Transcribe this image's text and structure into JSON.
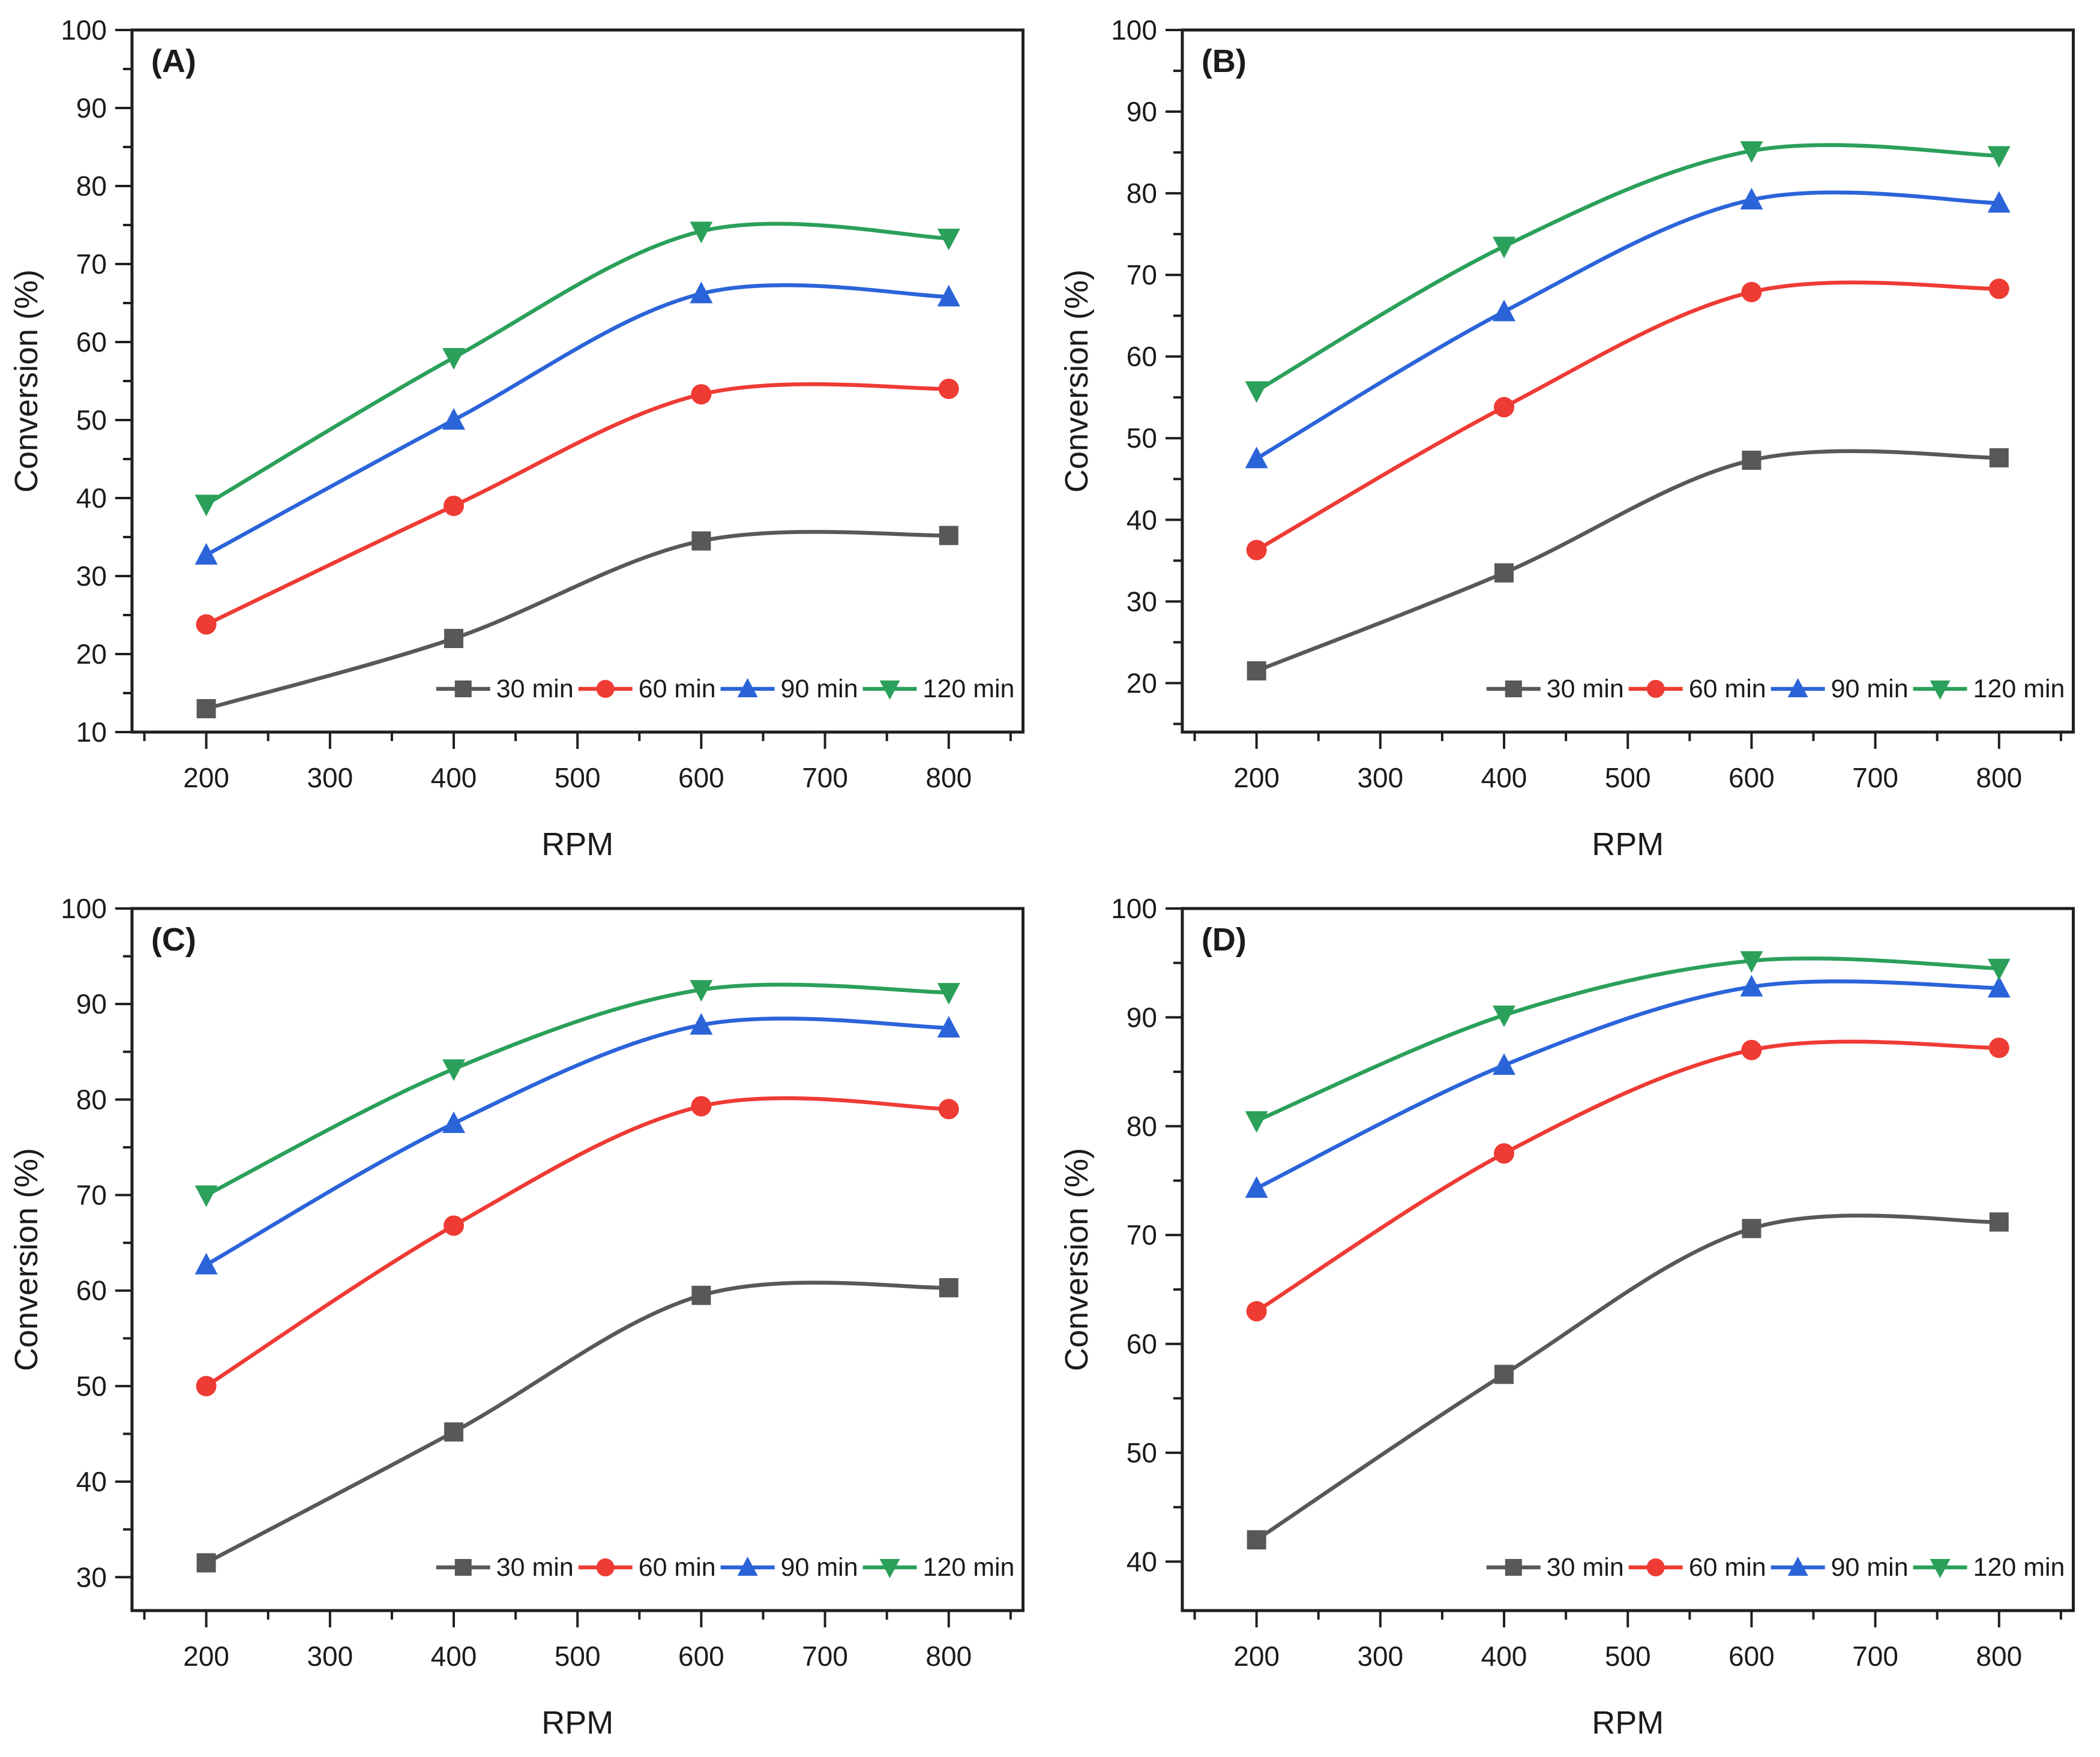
{
  "figure": {
    "background": "#ffffff",
    "axis_color": "#1f1f1f",
    "text_color": "#1b1b1b"
  },
  "legend": {
    "entries": [
      "30 min",
      "60 min",
      "90 min",
      "120 min"
    ],
    "position": "inside-bottom-right"
  },
  "chart_data": [
    {
      "panel_label": "(A)",
      "type": "line",
      "xlabel": "RPM",
      "ylabel": "Conversion (%)",
      "x": [
        200,
        400,
        600,
        800
      ],
      "xlim": [
        140,
        860
      ],
      "xticks": [
        200,
        300,
        400,
        500,
        600,
        700,
        800
      ],
      "x_minor_step": 50,
      "ylim": [
        10,
        100
      ],
      "yticks": [
        10,
        20,
        30,
        40,
        50,
        60,
        70,
        80,
        90,
        100
      ],
      "y_minor_step": 5,
      "grid": false,
      "legend_position": "inside-bottom-right",
      "series": [
        {
          "name": "30 min",
          "marker": "square",
          "color": "#58585A",
          "values": [
            13.0,
            22.0,
            34.5,
            35.2
          ]
        },
        {
          "name": "60 min",
          "marker": "circle",
          "color": "#EE3B34",
          "values": [
            23.8,
            39.0,
            53.3,
            54.0
          ]
        },
        {
          "name": "90 min",
          "marker": "triangle-up",
          "color": "#2B64D9",
          "values": [
            32.7,
            50.0,
            66.2,
            65.8
          ]
        },
        {
          "name": "120 min",
          "marker": "triangle-down",
          "color": "#2BA05A",
          "values": [
            39.2,
            58.0,
            74.2,
            73.3
          ]
        }
      ]
    },
    {
      "panel_label": "(B)",
      "type": "line",
      "xlabel": "RPM",
      "ylabel": "Conversion (%)",
      "x": [
        200,
        400,
        600,
        800
      ],
      "xlim": [
        140,
        860
      ],
      "xticks": [
        200,
        300,
        400,
        500,
        600,
        700,
        800
      ],
      "x_minor_step": 50,
      "ylim": [
        14,
        100
      ],
      "yticks": [
        20,
        30,
        40,
        50,
        60,
        70,
        80,
        90,
        100
      ],
      "y_minor_step": 5,
      "grid": false,
      "legend_position": "inside-bottom-right",
      "series": [
        {
          "name": "30 min",
          "marker": "square",
          "color": "#58585A",
          "values": [
            21.5,
            33.5,
            47.3,
            47.6
          ]
        },
        {
          "name": "60 min",
          "marker": "circle",
          "color": "#EE3B34",
          "values": [
            36.3,
            53.8,
            67.9,
            68.3
          ]
        },
        {
          "name": "90 min",
          "marker": "triangle-up",
          "color": "#2B64D9",
          "values": [
            47.5,
            65.5,
            79.2,
            78.8
          ]
        },
        {
          "name": "120 min",
          "marker": "triangle-down",
          "color": "#2BA05A",
          "values": [
            55.8,
            73.5,
            85.2,
            84.6
          ]
        }
      ]
    },
    {
      "panel_label": "(C)",
      "type": "line",
      "xlabel": "RPM",
      "ylabel": "Conversion (%)",
      "x": [
        200,
        400,
        600,
        800
      ],
      "xlim": [
        140,
        860
      ],
      "xticks": [
        200,
        300,
        400,
        500,
        600,
        700,
        800
      ],
      "x_minor_step": 50,
      "ylim": [
        26.5,
        100
      ],
      "yticks": [
        30,
        40,
        50,
        60,
        70,
        80,
        90,
        100
      ],
      "y_minor_step": 5,
      "grid": false,
      "legend_position": "inside-bottom-right",
      "series": [
        {
          "name": "30 min",
          "marker": "square",
          "color": "#58585A",
          "values": [
            31.5,
            45.2,
            59.5,
            60.3
          ]
        },
        {
          "name": "60 min",
          "marker": "circle",
          "color": "#EE3B34",
          "values": [
            50.0,
            66.8,
            79.3,
            79.0
          ]
        },
        {
          "name": "90 min",
          "marker": "triangle-up",
          "color": "#2B64D9",
          "values": [
            62.7,
            77.5,
            87.8,
            87.5
          ]
        },
        {
          "name": "120 min",
          "marker": "triangle-down",
          "color": "#2BA05A",
          "values": [
            70.0,
            83.2,
            91.5,
            91.2
          ]
        }
      ]
    },
    {
      "panel_label": "(D)",
      "type": "line",
      "xlabel": "RPM",
      "ylabel": "Conversion (%)",
      "x": [
        200,
        400,
        600,
        800
      ],
      "xlim": [
        140,
        860
      ],
      "xticks": [
        200,
        300,
        400,
        500,
        600,
        700,
        800
      ],
      "x_minor_step": 50,
      "ylim": [
        35.5,
        100
      ],
      "yticks": [
        40,
        50,
        60,
        70,
        80,
        90,
        100
      ],
      "y_minor_step": 5,
      "grid": false,
      "legend_position": "inside-bottom-right",
      "series": [
        {
          "name": "30 min",
          "marker": "square",
          "color": "#58585A",
          "values": [
            42.0,
            57.2,
            70.6,
            71.2
          ]
        },
        {
          "name": "60 min",
          "marker": "circle",
          "color": "#EE3B34",
          "values": [
            63.0,
            77.5,
            87.0,
            87.2
          ]
        },
        {
          "name": "90 min",
          "marker": "triangle-up",
          "color": "#2B64D9",
          "values": [
            74.3,
            85.6,
            92.8,
            92.7
          ]
        },
        {
          "name": "120 min",
          "marker": "triangle-down",
          "color": "#2BA05A",
          "values": [
            80.5,
            90.2,
            95.2,
            94.5
          ]
        }
      ]
    }
  ]
}
